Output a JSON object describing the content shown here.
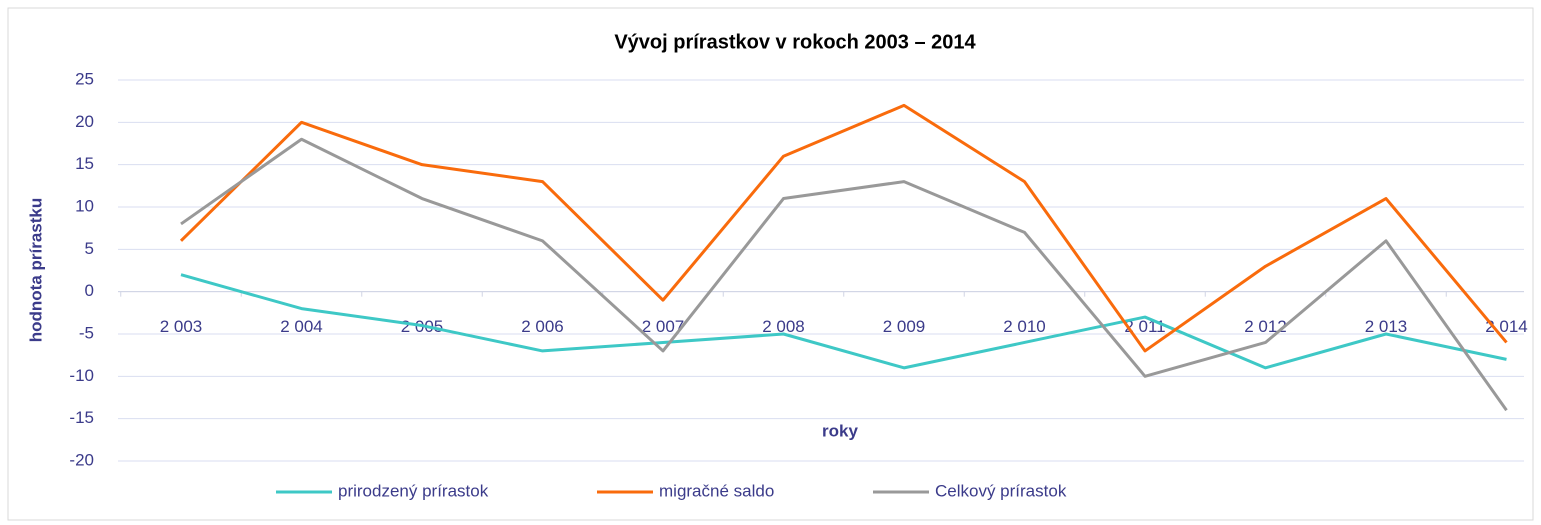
{
  "chart_data": {
    "type": "line",
    "title": "Vývoj prírastkov v rokoch 2003 – 2014",
    "x_label": "roky",
    "y_label": "hodnota prírastku",
    "categories": [
      "2 003",
      "2 004",
      "2 005",
      "2 006",
      "2 007",
      "2 008",
      "2 009",
      "2 010",
      "2 011",
      "2 012",
      "2 013",
      "2 014"
    ],
    "series": [
      {
        "name": "prirodzený prírastok",
        "color": "#3ec8c6",
        "values": [
          2,
          -2,
          -4,
          -7,
          -6,
          -5,
          -9,
          -6,
          -3,
          -9,
          -5,
          -8
        ]
      },
      {
        "name": "migračné saldo",
        "color": "#f96b0c",
        "values": [
          6,
          20,
          15,
          13,
          -1,
          16,
          22,
          13,
          -7,
          3,
          11,
          -6
        ]
      },
      {
        "name": "Celkový prírastok",
        "color": "#999999",
        "values": [
          8,
          18,
          11,
          6,
          -7,
          11,
          13,
          7,
          -10,
          -6,
          6,
          -14
        ]
      }
    ],
    "ylim": [
      -20,
      25
    ],
    "yticks": [
      -20,
      -15,
      -10,
      -5,
      0,
      5,
      10,
      15,
      20,
      25
    ],
    "grid": true,
    "legend": "bottom"
  }
}
